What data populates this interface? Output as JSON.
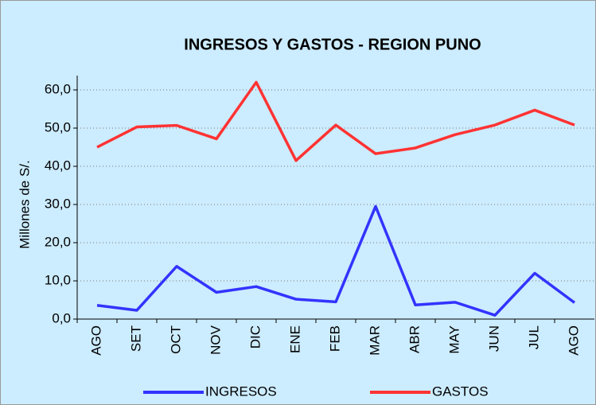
{
  "chart_data": {
    "type": "line",
    "title": "INGRESOS Y GASTOS - REGION PUNO",
    "y_label": "Millones de S/.",
    "categories": [
      "AGO",
      "SET",
      "OCT",
      "NOV",
      "DIC",
      "ENE",
      "FEB",
      "MAR",
      "ABR",
      "MAY",
      "JUN",
      "JUL",
      "AGO"
    ],
    "series": [
      {
        "name": "INGRESOS",
        "color": "#3333ff",
        "values": [
          3.6,
          2.3,
          13.8,
          7.0,
          8.5,
          5.2,
          4.5,
          29.5,
          3.7,
          4.4,
          1.0,
          12.0,
          4.3
        ]
      },
      {
        "name": "GASTOS",
        "color": "#ff3333",
        "values": [
          45.0,
          50.3,
          50.7,
          47.2,
          62.0,
          41.5,
          50.8,
          43.3,
          44.8,
          48.3,
          50.8,
          54.7,
          50.8
        ]
      }
    ],
    "ylim": [
      0,
      60
    ],
    "yticks": [
      {
        "value": 0,
        "label": "0,0"
      },
      {
        "value": 10,
        "label": "10,0"
      },
      {
        "value": 20,
        "label": "20,0"
      },
      {
        "value": 30,
        "label": "30,0"
      },
      {
        "value": 40,
        "label": "40,0"
      },
      {
        "value": 50,
        "label": "50,0"
      },
      {
        "value": 60,
        "label": "60,0"
      }
    ],
    "grid": true,
    "legend": "bottom"
  }
}
